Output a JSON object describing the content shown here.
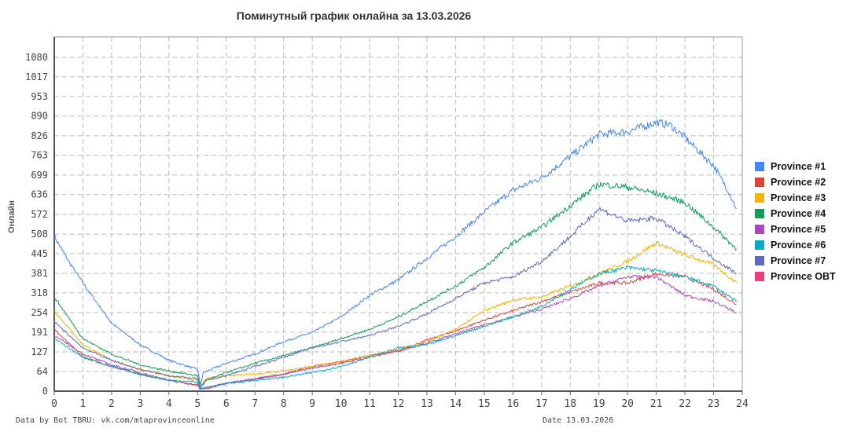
{
  "chart_data": {
    "type": "line",
    "title": "Поминутный график онлайна за 13.03.2026",
    "xlabel": "",
    "ylabel": "Онлайн",
    "xlim": [
      0,
      24
    ],
    "ylim": [
      0,
      1146
    ],
    "x_ticks": [
      "0",
      "1",
      "2",
      "3",
      "4",
      "5",
      "6",
      "7",
      "8",
      "9",
      "10",
      "11",
      "12",
      "13",
      "14",
      "15",
      "16",
      "17",
      "18",
      "19",
      "20",
      "21",
      "22",
      "23",
      "24"
    ],
    "y_ticks": [
      "0",
      "64",
      "127",
      "191",
      "254",
      "318",
      "381",
      "445",
      "508",
      "572",
      "636",
      "699",
      "763",
      "826",
      "890",
      "953",
      "1017",
      "1080"
    ],
    "grid": true,
    "legend_position": "right",
    "series": [
      {
        "name": "Province #1",
        "color": "#4285f4",
        "x": [
          0,
          0.5,
          1,
          2,
          3,
          4,
          5,
          5.1,
          5.2,
          6,
          7,
          8,
          9,
          10,
          11,
          12,
          13,
          14,
          15,
          16,
          17,
          18,
          19,
          20,
          21,
          21.5,
          22,
          23,
          23.5,
          23.8
        ],
        "y": [
          500,
          420,
          350,
          220,
          150,
          100,
          70,
          20,
          60,
          90,
          120,
          160,
          190,
          240,
          310,
          360,
          430,
          500,
          580,
          650,
          690,
          760,
          830,
          840,
          870,
          860,
          820,
          730,
          650,
          590
        ]
      },
      {
        "name": "Province #2",
        "color": "#db4437",
        "x": [
          0,
          1,
          2,
          3,
          4,
          5,
          5.1,
          6,
          7,
          8,
          9,
          10,
          11,
          12,
          13,
          14,
          15,
          16,
          17,
          18,
          19,
          20,
          21,
          22,
          23,
          23.8
        ],
        "y": [
          200,
          110,
          80,
          55,
          35,
          20,
          5,
          25,
          40,
          55,
          80,
          95,
          115,
          130,
          165,
          195,
          230,
          260,
          290,
          320,
          350,
          350,
          380,
          370,
          330,
          280
        ]
      },
      {
        "name": "Province #3",
        "color": "#f4b400",
        "x": [
          0,
          1,
          2,
          3,
          4,
          5,
          5.1,
          5.3,
          6,
          7,
          8,
          9,
          10,
          11,
          12,
          13,
          14,
          15,
          16,
          17,
          18,
          19,
          20,
          21,
          22,
          23,
          23.8
        ],
        "y": [
          260,
          150,
          100,
          70,
          50,
          35,
          15,
          40,
          50,
          55,
          65,
          80,
          95,
          115,
          135,
          160,
          200,
          260,
          295,
          305,
          340,
          380,
          420,
          480,
          440,
          410,
          350
        ]
      },
      {
        "name": "Province #4",
        "color": "#0f9d58",
        "x": [
          0,
          1,
          2,
          3,
          4,
          5,
          5.1,
          5.3,
          6,
          7,
          8,
          9,
          10,
          11,
          12,
          13,
          14,
          15,
          16,
          17,
          18,
          19,
          20,
          21,
          22,
          23,
          23.8
        ],
        "y": [
          305,
          170,
          120,
          85,
          65,
          50,
          10,
          35,
          60,
          90,
          115,
          140,
          170,
          200,
          240,
          290,
          340,
          400,
          480,
          530,
          600,
          670,
          660,
          640,
          610,
          530,
          460
        ]
      },
      {
        "name": "Province #5",
        "color": "#ab47bc",
        "x": [
          0,
          1,
          2,
          3,
          4,
          5,
          5.1,
          6,
          7,
          8,
          9,
          10,
          11,
          12,
          13,
          14,
          15,
          16,
          17,
          18,
          19,
          20,
          21,
          22,
          23,
          23.8
        ],
        "y": [
          180,
          120,
          85,
          60,
          35,
          20,
          5,
          25,
          40,
          55,
          75,
          90,
          110,
          130,
          155,
          185,
          215,
          240,
          265,
          300,
          340,
          370,
          370,
          310,
          290,
          255
        ]
      },
      {
        "name": "Province #6",
        "color": "#00acc1",
        "x": [
          0,
          1,
          2,
          3,
          4,
          5,
          5.1,
          6,
          7,
          8,
          9,
          10,
          11,
          12,
          13,
          14,
          15,
          16,
          17,
          18,
          19,
          20,
          21,
          22,
          23,
          23.8
        ],
        "y": [
          170,
          110,
          80,
          55,
          35,
          30,
          8,
          25,
          35,
          45,
          60,
          80,
          110,
          140,
          150,
          180,
          210,
          240,
          275,
          330,
          380,
          400,
          390,
          370,
          340,
          290
        ]
      },
      {
        "name": "Province #7",
        "color": "#5c6bc0",
        "x": [
          0,
          1,
          2,
          3,
          4,
          5,
          5.1,
          5.3,
          6,
          7,
          8,
          9,
          10,
          11,
          12,
          13,
          14,
          15,
          16,
          17,
          18,
          19,
          20,
          21,
          22,
          23,
          23.8
        ],
        "y": [
          225,
          140,
          100,
          70,
          50,
          40,
          10,
          35,
          50,
          80,
          110,
          140,
          160,
          180,
          210,
          250,
          300,
          350,
          370,
          420,
          500,
          590,
          550,
          560,
          500,
          430,
          380
        ]
      },
      {
        "name": "Province OBT",
        "color": "#ec407a",
        "x": [],
        "y": []
      }
    ]
  },
  "footer": {
    "source": "Data by Bot TBRU: vk.com/mtaprovinceonline",
    "date": "Date 13.03.2026"
  }
}
